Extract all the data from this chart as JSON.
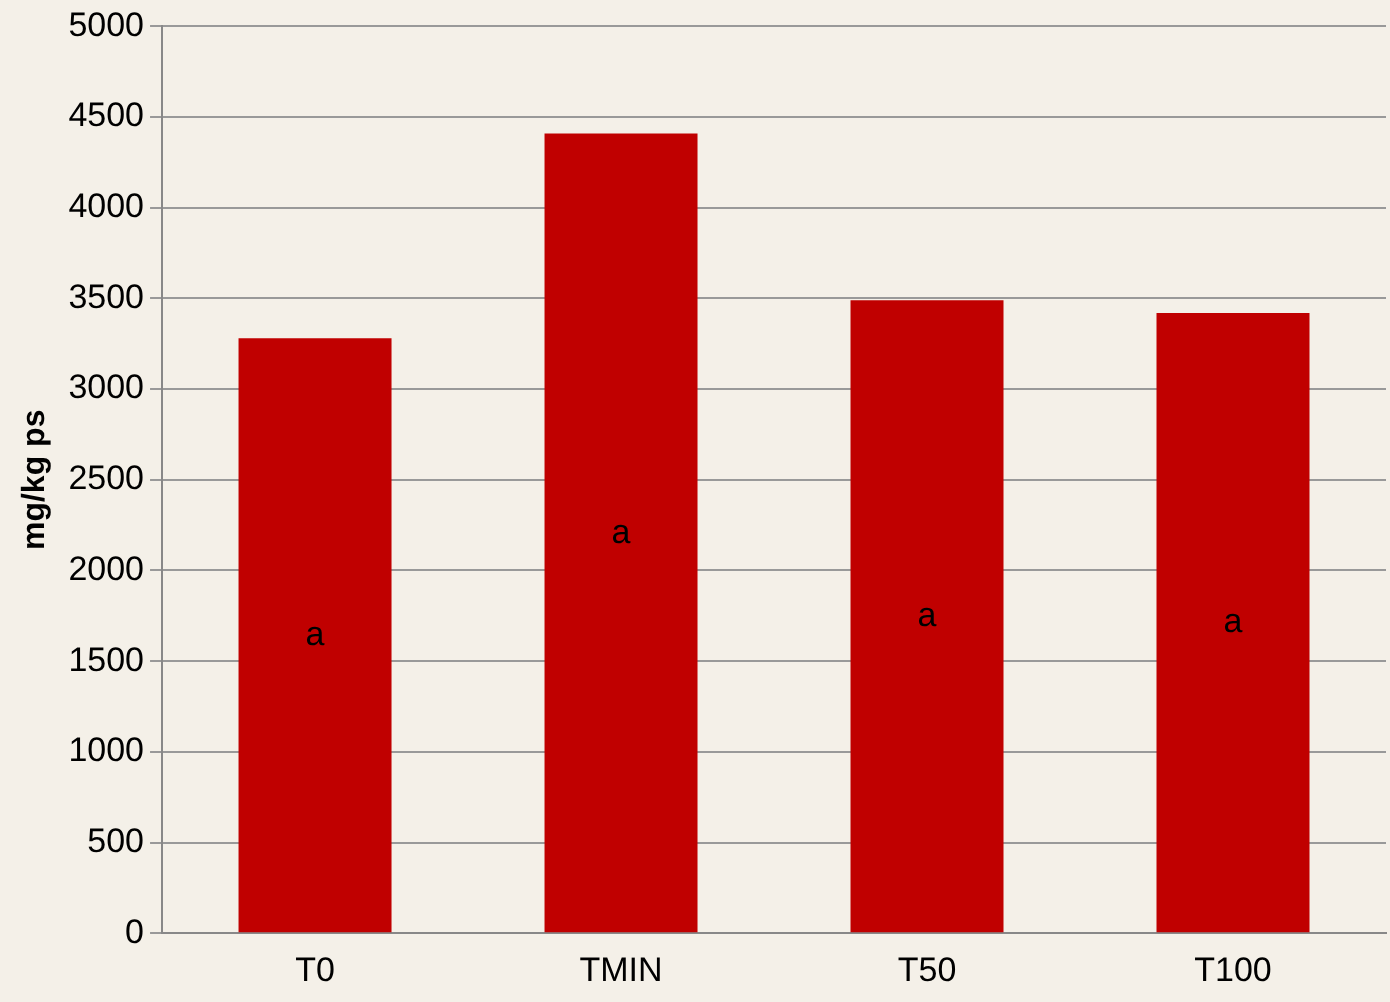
{
  "chart_data": {
    "type": "bar",
    "ylabel": "mg/kg ps",
    "categories": [
      "T0",
      "TMIN",
      "T50",
      "T100"
    ],
    "values": [
      3280,
      4410,
      3490,
      3420
    ],
    "color": "#c00000",
    "ylim": [
      0,
      5000
    ],
    "yticks": [
      0,
      500,
      1000,
      1500,
      2000,
      2500,
      3000,
      3500,
      4000,
      4500,
      5000
    ],
    "grid": "y",
    "annotations": [
      "a",
      "a",
      "a",
      "a"
    ]
  }
}
